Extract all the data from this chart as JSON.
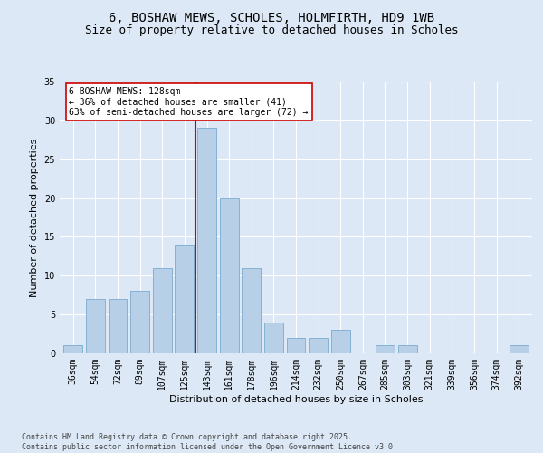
{
  "title_line1": "6, BOSHAW MEWS, SCHOLES, HOLMFIRTH, HD9 1WB",
  "title_line2": "Size of property relative to detached houses in Scholes",
  "xlabel": "Distribution of detached houses by size in Scholes",
  "ylabel": "Number of detached properties",
  "bins": [
    "36sqm",
    "54sqm",
    "72sqm",
    "89sqm",
    "107sqm",
    "125sqm",
    "143sqm",
    "161sqm",
    "178sqm",
    "196sqm",
    "214sqm",
    "232sqm",
    "250sqm",
    "267sqm",
    "285sqm",
    "303sqm",
    "321sqm",
    "339sqm",
    "356sqm",
    "374sqm",
    "392sqm"
  ],
  "values": [
    1,
    7,
    7,
    8,
    11,
    14,
    29,
    20,
    11,
    4,
    2,
    2,
    3,
    0,
    1,
    1,
    0,
    0,
    0,
    0,
    1
  ],
  "bar_color": "#b8cfe8",
  "bar_edge_color": "#7aaace",
  "background_color": "#dce8f5",
  "red_line_x": 5.5,
  "annotation_text": "6 BOSHAW MEWS: 128sqm\n← 36% of detached houses are smaller (41)\n63% of semi-detached houses are larger (72) →",
  "annotation_box_color": "#ffffff",
  "annotation_border_color": "#cc0000",
  "ylim": [
    0,
    35
  ],
  "yticks": [
    0,
    5,
    10,
    15,
    20,
    25,
    30,
    35
  ],
  "footer": "Contains HM Land Registry data © Crown copyright and database right 2025.\nContains public sector information licensed under the Open Government Licence v3.0.",
  "red_line_color": "#cc0000",
  "title_fontsize": 10,
  "subtitle_fontsize": 9,
  "axis_label_fontsize": 8,
  "tick_fontsize": 7,
  "annotation_fontsize": 7,
  "footer_fontsize": 6
}
